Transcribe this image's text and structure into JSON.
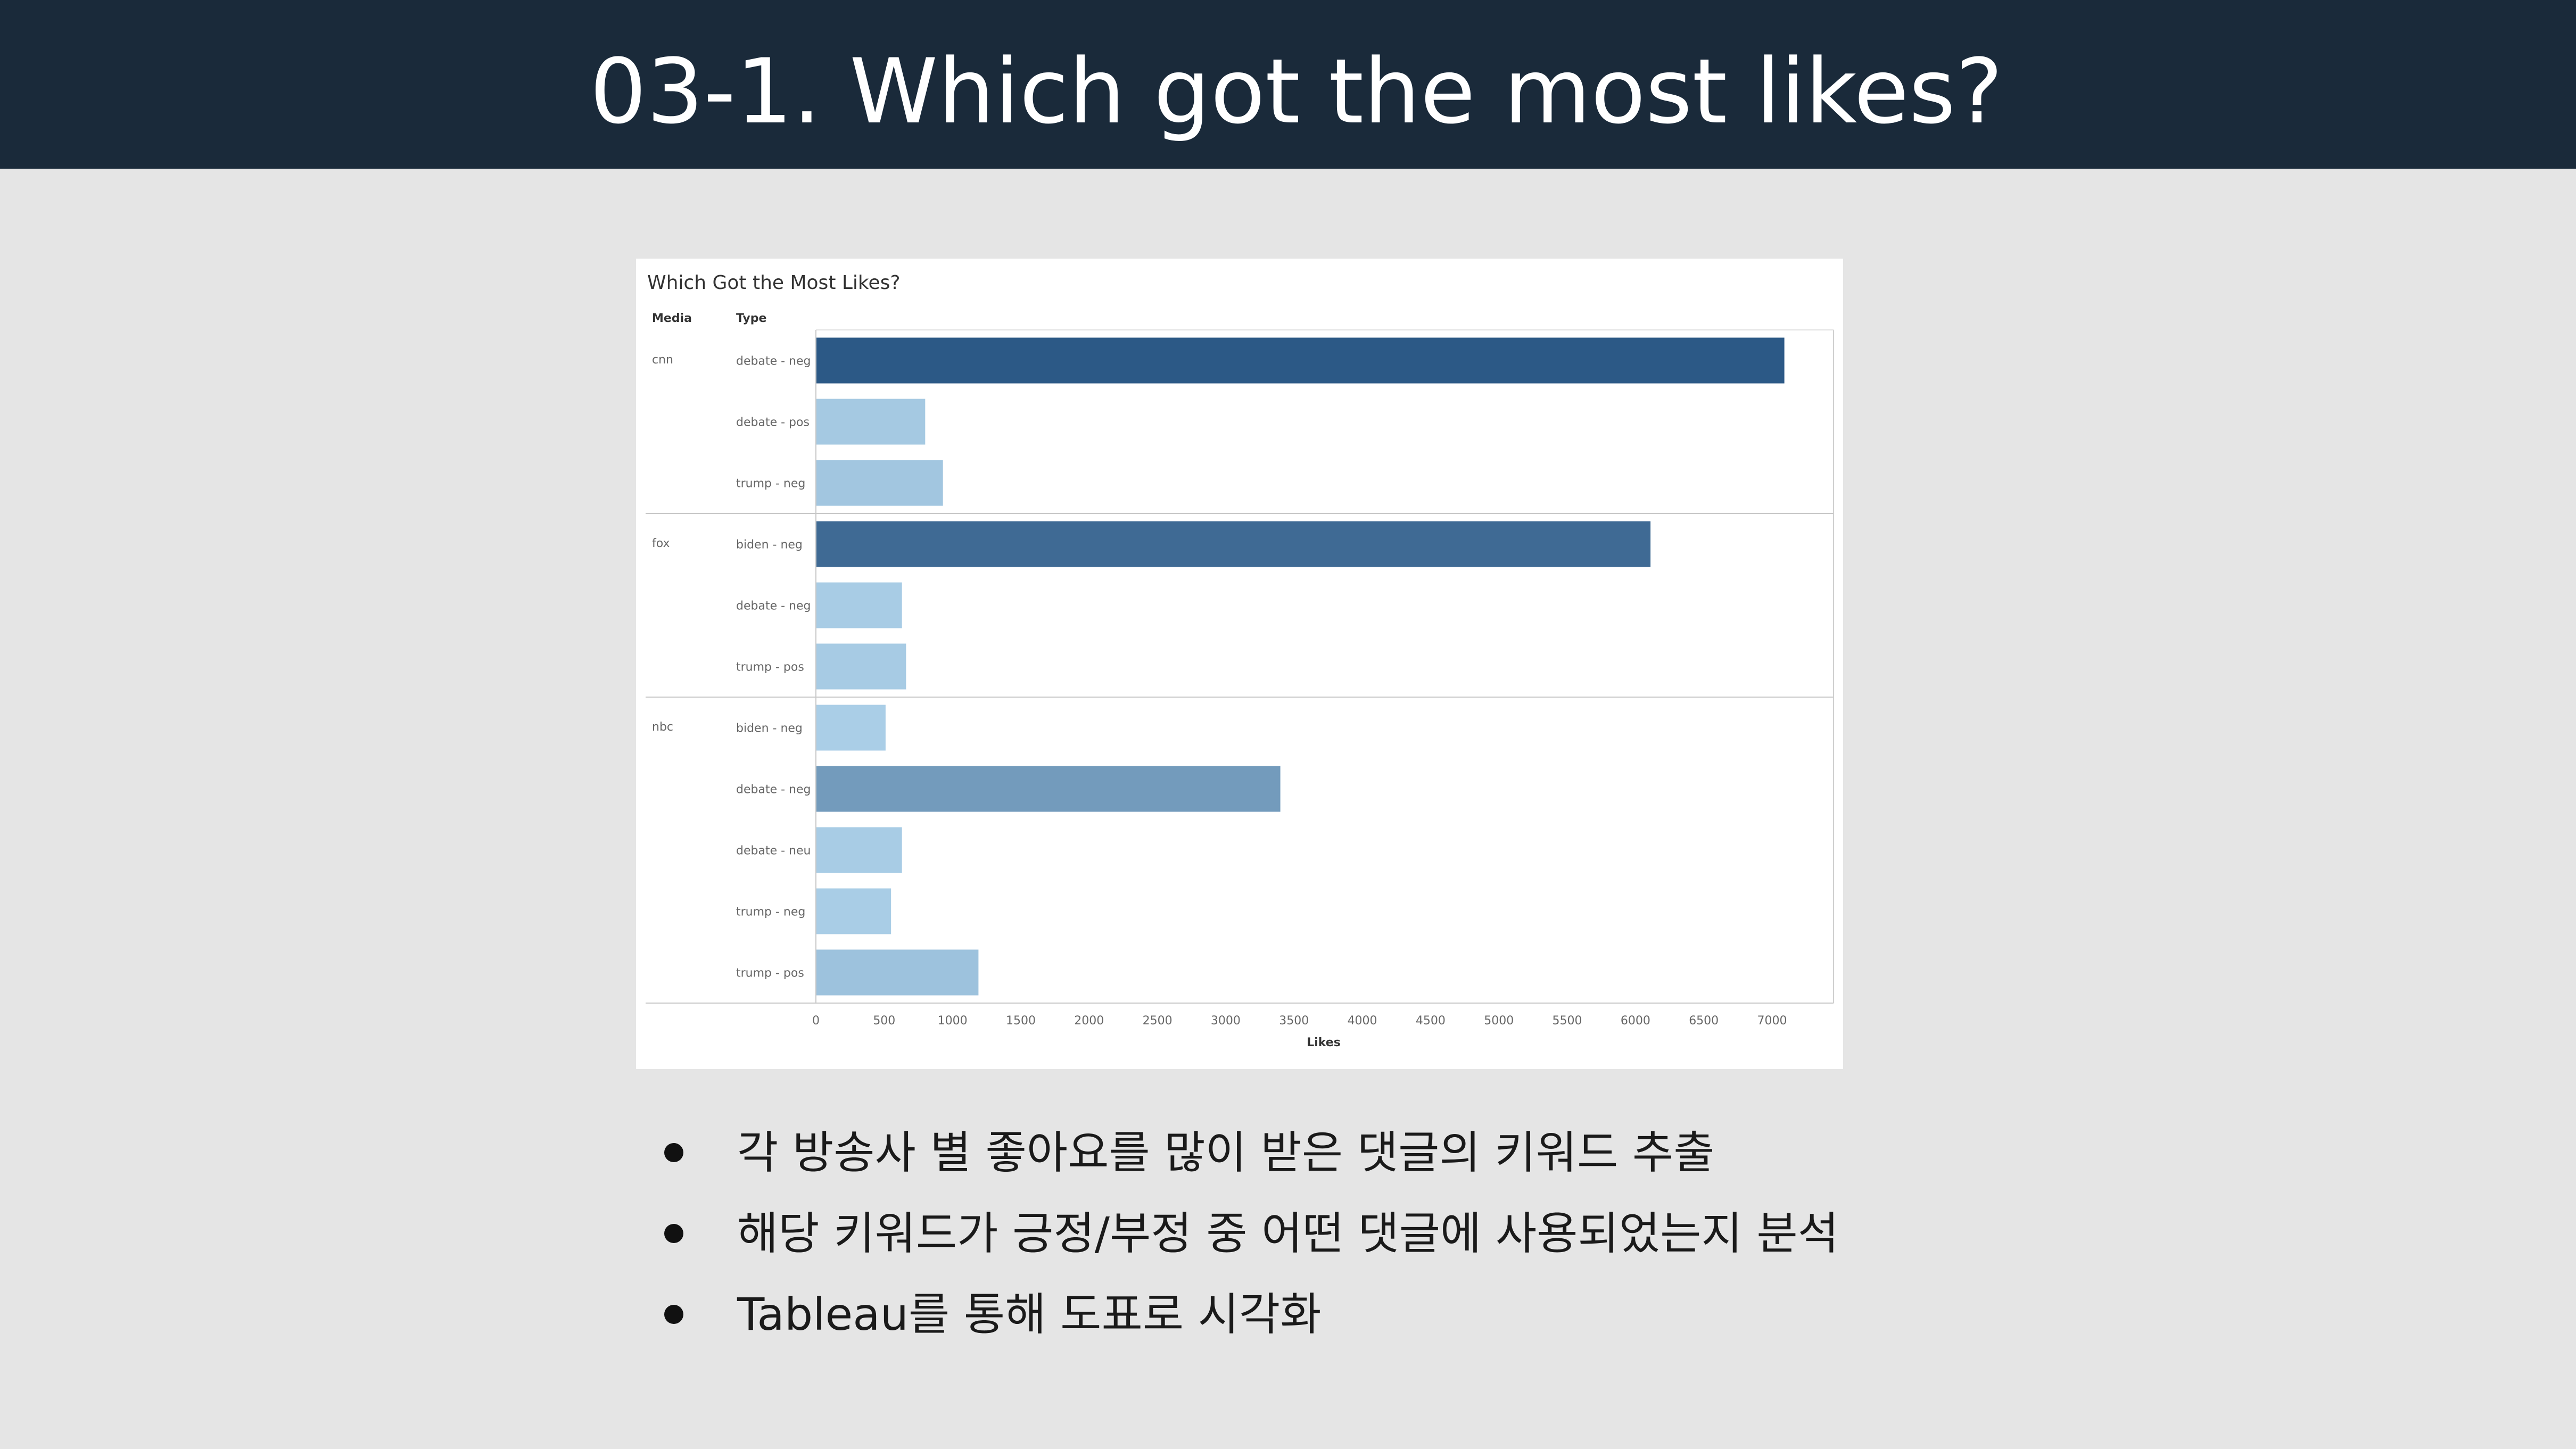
{
  "slide": {
    "title": "03-1. Which got the most likes?"
  },
  "colors": {
    "header_bg": "#1a2a3a",
    "page_bg": "#e5e5e5",
    "bar_dark": "#2c5986",
    "bar_light": "#b4d7ee"
  },
  "chart_data": {
    "type": "bar",
    "orientation": "horizontal",
    "title": "Which Got the Most Likes?",
    "row_headers": [
      "Media",
      "Type"
    ],
    "xlabel": "Likes",
    "xlim": [
      0,
      7450
    ],
    "xticks": [
      0,
      500,
      1000,
      1500,
      2000,
      2500,
      3000,
      3500,
      4000,
      4500,
      5000,
      5500,
      6000,
      6500,
      7000
    ],
    "color_encoding": "Likes",
    "groups": [
      {
        "media": "cnn",
        "rows": [
          {
            "type": "debate - neg",
            "value": 7090
          },
          {
            "type": "debate - pos",
            "value": 800
          },
          {
            "type": "trump - neg",
            "value": 930
          }
        ]
      },
      {
        "media": "fox",
        "rows": [
          {
            "type": "biden - neg",
            "value": 6110
          },
          {
            "type": "debate - neg",
            "value": 630
          },
          {
            "type": "trump - pos",
            "value": 660
          }
        ]
      },
      {
        "media": "nbc",
        "rows": [
          {
            "type": "biden - neg",
            "value": 510
          },
          {
            "type": "debate - neg",
            "value": 3400
          },
          {
            "type": "debate - neu",
            "value": 630
          },
          {
            "type": "trump - neg",
            "value": 550
          },
          {
            "type": "trump - pos",
            "value": 1190
          }
        ]
      }
    ]
  },
  "bullets": [
    "각 방송사 별 좋아요를 많이 받은 댓글의 키워드 추출",
    "해당 키워드가 긍정/부정 중 어떤 댓글에 사용되었는지 분석",
    "Tableau를 통해 도표로 시각화"
  ]
}
